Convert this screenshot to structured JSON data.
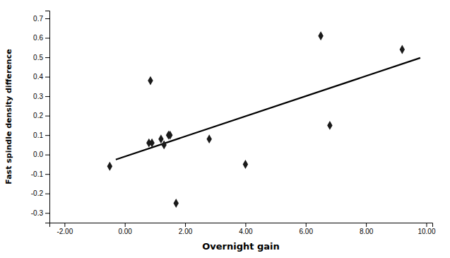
{
  "chart_data": {
    "type": "scatter",
    "xlabel": "Overnight gain",
    "ylabel": "Fast spindle density difference",
    "series": [
      {
        "type": "scatter",
        "marker": "diamond",
        "color": "#1a1a1a",
        "x": [
          -0.5,
          0.8,
          0.9,
          1.2,
          1.3,
          1.45,
          1.5,
          0.85,
          1.7,
          2.8,
          4.0,
          6.5,
          6.8,
          9.2
        ],
        "values": [
          -0.06,
          0.06,
          0.06,
          0.08,
          0.05,
          0.1,
          0.1,
          0.38,
          -0.25,
          0.08,
          -0.05,
          0.61,
          0.15,
          0.54
        ]
      },
      {
        "type": "line",
        "color": "#000000",
        "x": [
          -0.3,
          9.8
        ],
        "values": [
          -0.0257,
          0.4969
        ]
      }
    ],
    "xlim": [
      -2.5,
      10.2
    ],
    "ylim": [
      -0.35,
      0.74
    ],
    "xticks": [
      {
        "value": -2,
        "label": "-2.00"
      },
      {
        "value": 0,
        "label": "0.00"
      },
      {
        "value": 2,
        "label": "2.00"
      },
      {
        "value": 4,
        "label": "4.00"
      },
      {
        "value": 6,
        "label": "6.00"
      },
      {
        "value": 8,
        "label": "8.00"
      },
      {
        "value": 10,
        "label": "10.00"
      }
    ],
    "yticks": [
      -0.3,
      -0.2,
      -0.1,
      {
        "value": 0,
        "label": "0.0"
      },
      0.1,
      0.2,
      0.3,
      0.4,
      0.5,
      0.6,
      0.7
    ],
    "grid": false
  }
}
